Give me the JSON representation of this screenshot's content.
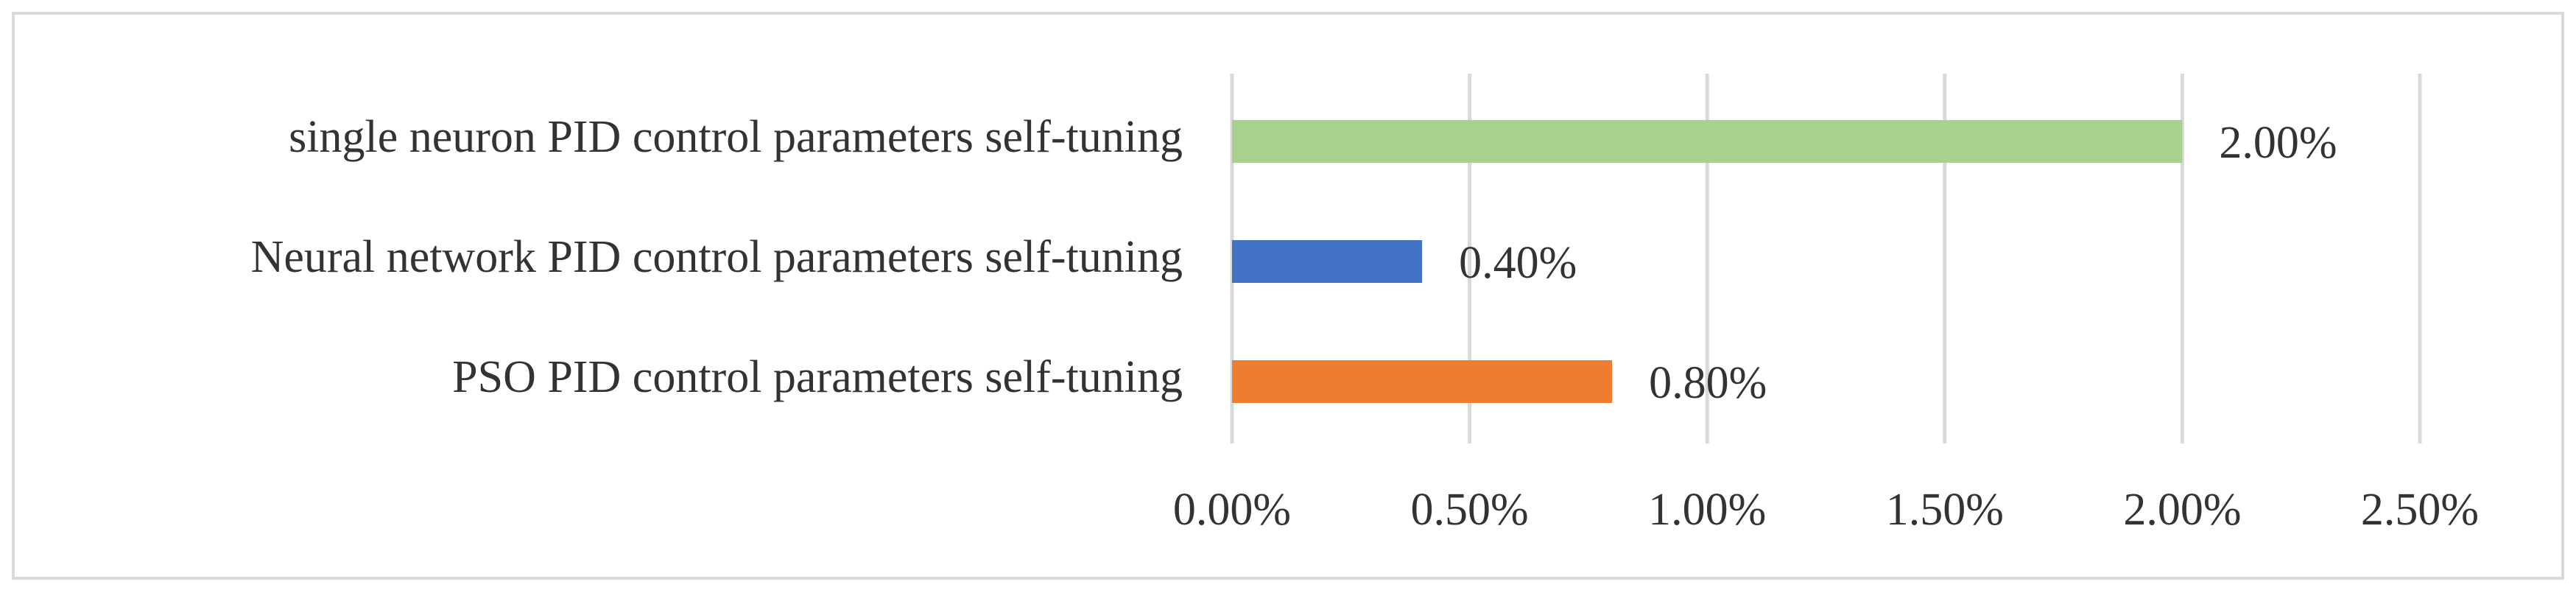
{
  "chart_data": {
    "type": "barh",
    "categories": [
      "single neuron PID control parameters self-tuning",
      "Neural network PID control parameters self-tuning",
      "PSO PID control parameters self-tuning"
    ],
    "values": [
      2.0,
      0.4,
      0.8
    ],
    "value_labels": [
      "2.00%",
      "0.40%",
      "0.80%"
    ],
    "colors": [
      "#a9d18e",
      "#4472c4",
      "#ed7d31"
    ],
    "xlim": [
      0,
      2.5
    ],
    "xticks": [
      {
        "value": 0,
        "label": "0.00%"
      },
      {
        "value": 0.5,
        "label": "0.50%"
      },
      {
        "value": 1.0,
        "label": "1.00%"
      },
      {
        "value": 1.5,
        "label": "1.50%"
      },
      {
        "value": 2.0,
        "label": "2.00%"
      },
      {
        "value": 2.5,
        "label": "2.50%"
      }
    ],
    "grid": true
  }
}
